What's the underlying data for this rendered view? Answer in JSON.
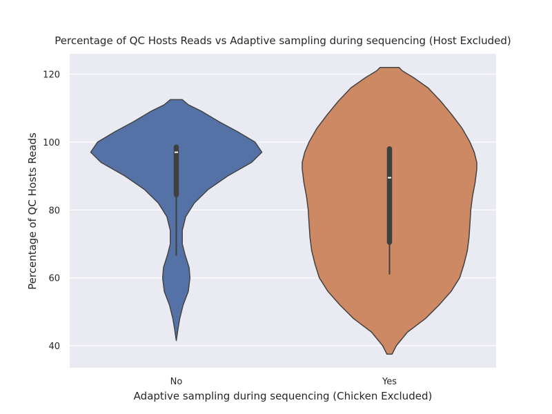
{
  "chart_data": {
    "type": "violin",
    "title": "Percentage of QC Hosts Reads vs Adaptive sampling during sequencing (Host Excluded)",
    "xlabel": "Adaptive sampling during sequencing (Chicken Excluded)",
    "ylabel": "Percentage of QC Hosts Reads",
    "categories": [
      "No",
      "Yes"
    ],
    "ylim": [
      33.5,
      126
    ],
    "yticks": [
      40,
      60,
      80,
      100,
      120
    ],
    "grid": true,
    "colors": {
      "No": "#5572a6",
      "Yes": "#cc8963",
      "background": "#eaeaf2",
      "grid": "#ffffff",
      "edge": "#424242"
    },
    "violins": [
      {
        "category": "No",
        "color": "#5572a6",
        "range": [
          41.5,
          112.5
        ],
        "density": [
          [
            41.5,
            0
          ],
          [
            45,
            0.02
          ],
          [
            48,
            0.04
          ],
          [
            52,
            0.08
          ],
          [
            56,
            0.14
          ],
          [
            60,
            0.16
          ],
          [
            63,
            0.15
          ],
          [
            67,
            0.1
          ],
          [
            70,
            0.07
          ],
          [
            74,
            0.07
          ],
          [
            78,
            0.11
          ],
          [
            82,
            0.21
          ],
          [
            86,
            0.37
          ],
          [
            90,
            0.6
          ],
          [
            94,
            0.88
          ],
          [
            97,
            1.0
          ],
          [
            100,
            0.92
          ],
          [
            103,
            0.72
          ],
          [
            106,
            0.5
          ],
          [
            109,
            0.3
          ],
          [
            111,
            0.14
          ],
          [
            112.5,
            0.07
          ]
        ],
        "box": {
          "min": 66.5,
          "q1": 84.5,
          "median": 97,
          "q3": 98.5,
          "max": 99
        }
      },
      {
        "category": "Yes",
        "color": "#cc8963",
        "range": [
          37.5,
          122
        ],
        "density": [
          [
            37.5,
            0.03
          ],
          [
            40,
            0.08
          ],
          [
            44,
            0.21
          ],
          [
            48,
            0.42
          ],
          [
            52,
            0.58
          ],
          [
            56,
            0.72
          ],
          [
            60,
            0.82
          ],
          [
            64,
            0.87
          ],
          [
            68,
            0.91
          ],
          [
            72,
            0.93
          ],
          [
            76,
            0.94
          ],
          [
            80,
            0.95
          ],
          [
            84,
            0.97
          ],
          [
            88,
            1.0
          ],
          [
            92,
            1.02
          ],
          [
            94,
            1.02
          ],
          [
            97,
            0.99
          ],
          [
            100,
            0.94
          ],
          [
            104,
            0.85
          ],
          [
            108,
            0.73
          ],
          [
            112,
            0.6
          ],
          [
            116,
            0.45
          ],
          [
            119,
            0.28
          ],
          [
            121,
            0.15
          ],
          [
            122,
            0.11
          ]
        ],
        "box": {
          "min": 61,
          "q1": 70.5,
          "median": 89.5,
          "q3": 98,
          "max": 98.5
        }
      }
    ]
  }
}
